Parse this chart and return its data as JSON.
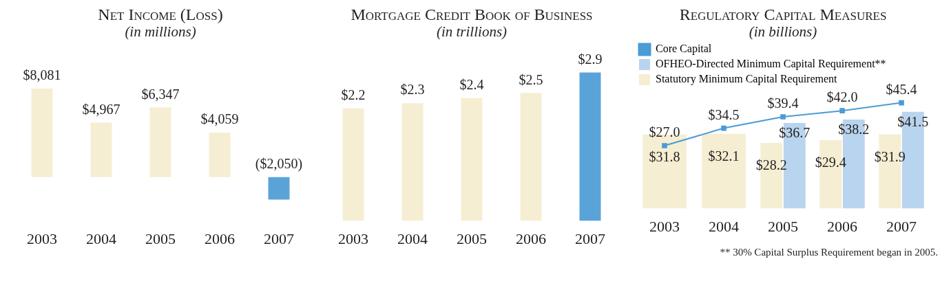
{
  "chart_data": [
    {
      "type": "bar",
      "title": "Net Income (Loss)",
      "subtitle": "(in millions)",
      "categories": [
        "2003",
        "2004",
        "2005",
        "2006",
        "2007"
      ],
      "values": [
        8081,
        4967,
        6347,
        4059,
        -2050
      ],
      "colors": [
        "#f5eed3",
        "#f5eed3",
        "#f5eed3",
        "#f5eed3",
        "#5aa3d8"
      ],
      "value_labels": [
        "$8,081",
        "$4,967",
        "$6,347",
        "$4,059",
        "($2,050)"
      ],
      "tick_labels": "x",
      "grid": false,
      "legend": false
    },
    {
      "type": "bar",
      "title": "Mortgage Credit Book of Business",
      "subtitle": "(in trillions)",
      "categories": [
        "2003",
        "2004",
        "2005",
        "2006",
        "2007"
      ],
      "values": [
        2.2,
        2.3,
        2.4,
        2.5,
        2.9
      ],
      "colors": [
        "#f5eed3",
        "#f5eed3",
        "#f5eed3",
        "#f5eed3",
        "#5aa3d8"
      ],
      "value_labels": [
        "$2.2",
        "$2.3",
        "$2.4",
        "$2.5",
        "$2.9"
      ],
      "tick_labels": "x",
      "grid": false,
      "legend": false
    },
    {
      "type": "bar",
      "title": "Regulatory Capital Measures",
      "subtitle": "(in billions)",
      "categories": [
        "2003",
        "2004",
        "2005",
        "2006",
        "2007"
      ],
      "series": [
        {
          "name": "Core Capital",
          "type": "line",
          "color": "#4a9bd6",
          "values": [
            27.0,
            34.5,
            39.4,
            42.0,
            45.4
          ],
          "value_labels": [
            "$27.0",
            "$34.5",
            "$39.4",
            "$42.0",
            "$45.4"
          ]
        },
        {
          "name": "OFHEO-Directed Minimum Capital Requirement**",
          "color": "#b9d4ee",
          "values": [
            null,
            null,
            36.7,
            38.2,
            41.5
          ],
          "value_labels": [
            null,
            null,
            "$36.7",
            "$38.2",
            "$41.5"
          ]
        },
        {
          "name": "Statutory Minimum Capital Requirement",
          "color": "#f5eed3",
          "values": [
            31.8,
            32.1,
            28.2,
            29.4,
            31.9
          ],
          "value_labels": [
            "$31.8",
            "$32.1",
            "$28.2",
            "$29.4",
            "$31.9"
          ]
        }
      ],
      "marker": "square",
      "tick_labels": "x",
      "grid": false,
      "legend": "top left",
      "annotations": [
        "** 30% Capital Surplus Requirement began in 2005."
      ]
    }
  ]
}
